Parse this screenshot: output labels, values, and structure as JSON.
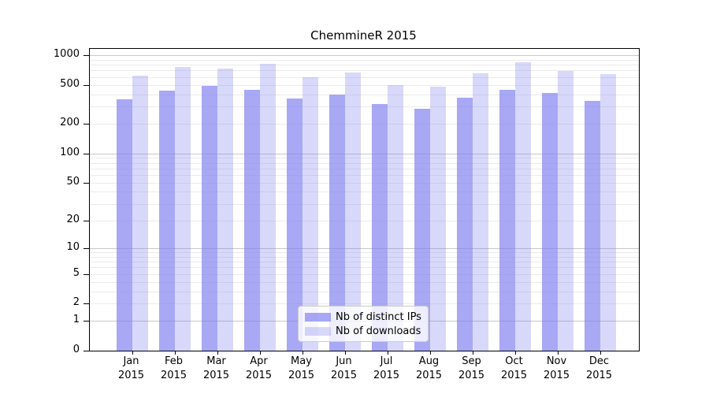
{
  "chart_data": {
    "type": "bar",
    "title": "ChemmineR 2015",
    "categories": [
      "Jan 2015",
      "Feb 2015",
      "Mar 2015",
      "Apr 2015",
      "May 2015",
      "Jun 2015",
      "Jul 2015",
      "Aug 2015",
      "Sep 2015",
      "Oct 2015",
      "Nov 2015",
      "Dec 2015"
    ],
    "series": [
      {
        "name": "Nb of distinct IPs",
        "values": [
          355,
          440,
          485,
          445,
          360,
          400,
          320,
          285,
          370,
          445,
          415,
          340
        ]
      },
      {
        "name": "Nb of downloads",
        "values": [
          625,
          760,
          735,
          815,
          600,
          670,
          495,
          475,
          655,
          850,
          690,
          640
        ]
      }
    ],
    "yscale": "log1p",
    "yticks": [
      0,
      1,
      2,
      5,
      10,
      20,
      50,
      100,
      200,
      500,
      1000
    ],
    "ylim": [
      0,
      1160
    ],
    "grid": true,
    "legend_position": "lower center inside"
  },
  "colors": {
    "bar_distinct_ips": "rgba(127,127,240,0.68)",
    "bar_downloads": "rgba(127,127,240,0.30)",
    "grid_major": "#c8c8c8",
    "grid_minor": "#ebebeb",
    "axis": "#000000",
    "legend_border": "#cccccc",
    "legend_bg": "rgba(255,255,255,0.8)",
    "text": "#000000"
  }
}
